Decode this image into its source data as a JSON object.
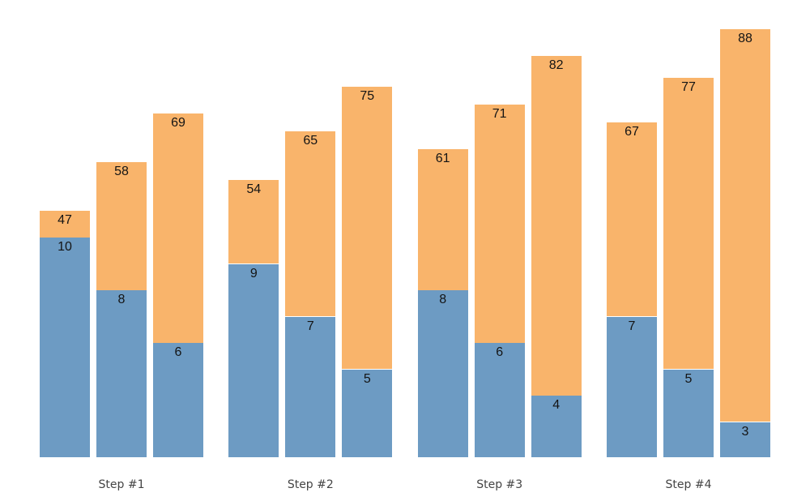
{
  "chart_data": {
    "type": "bar",
    "subtype": "grouped-stacked-columns",
    "title": "",
    "xlabel": "",
    "ylabel": "",
    "grid": "off",
    "legend": "none",
    "background_color": "#ffffff",
    "bar_label_color": "#141414",
    "category_label_color": "#444444",
    "categories": [
      "Step #1",
      "Step #2",
      "Step #3",
      "Step #4"
    ],
    "series": [
      {
        "name": "blue-bottom-segment",
        "color": "#6d9bc3",
        "values_by_group": [
          [
            10,
            8,
            6
          ],
          [
            9,
            7,
            5
          ],
          [
            8,
            6,
            4
          ],
          [
            7,
            5,
            3
          ]
        ]
      },
      {
        "name": "orange-top-segment",
        "color": "#f9b46b",
        "values_by_group": [
          [
            47,
            58,
            69
          ],
          [
            54,
            65,
            75
          ],
          [
            61,
            71,
            82
          ],
          [
            67,
            77,
            88
          ]
        ]
      }
    ]
  }
}
